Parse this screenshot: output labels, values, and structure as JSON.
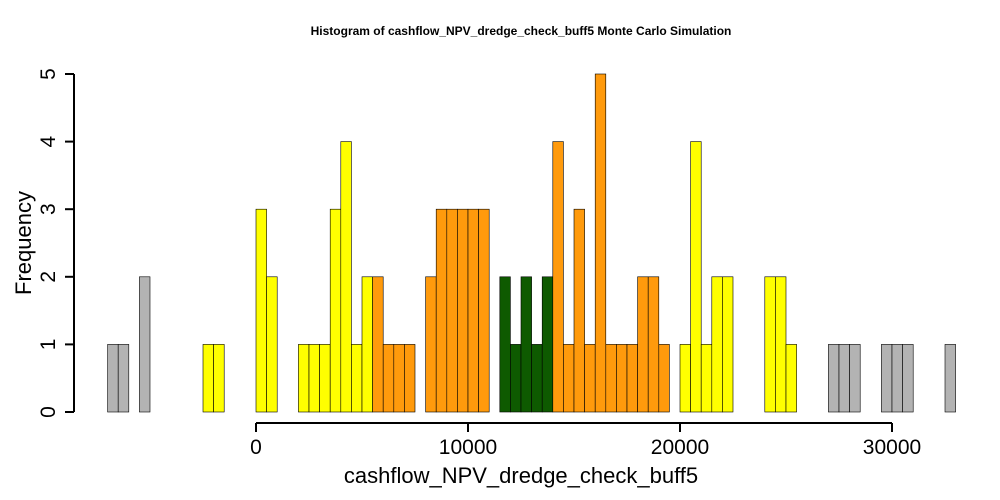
{
  "chart_data": {
    "type": "bar",
    "title": "Histogram of  cashflow_NPV_dredge_check_buff5  Monte Carlo Simulation",
    "xlabel": "cashflow_NPV_dredge_check_buff5",
    "ylabel": "Frequency",
    "xlim": [
      -6000,
      32000
    ],
    "ylim": [
      0,
      5
    ],
    "bin_width": 500,
    "first_bin_start": -7000,
    "x_ticks": [
      0,
      10000,
      20000,
      30000
    ],
    "y_ticks": [
      0,
      1,
      2,
      3,
      4,
      5
    ],
    "grid": false,
    "legend": "none",
    "colors": {
      "gray": "#b3b3b3",
      "yellow": "#ffff00",
      "orange": "#ff9a0c",
      "green": "#0e5a00",
      "outline": "#000000"
    },
    "counts": [
      1,
      1,
      0,
      2,
      0,
      0,
      0,
      0,
      0,
      1,
      1,
      0,
      0,
      0,
      3,
      2,
      0,
      0,
      1,
      1,
      1,
      3,
      4,
      1,
      2,
      2,
      1,
      1,
      1,
      0,
      2,
      3,
      3,
      3,
      3,
      3,
      0,
      2,
      1,
      2,
      1,
      2,
      4,
      1,
      3,
      1,
      5,
      1,
      1,
      1,
      2,
      2,
      1,
      0,
      1,
      4,
      1,
      2,
      2,
      0,
      0,
      0,
      2,
      2,
      1,
      0,
      0,
      0,
      1,
      1,
      1,
      0,
      0,
      1,
      1,
      1,
      0,
      0,
      0,
      1
    ],
    "bar_colors": [
      "gray",
      "gray",
      "gray",
      "gray",
      "gray",
      "gray",
      "gray",
      "gray",
      "gray",
      "yellow",
      "yellow",
      "yellow",
      "yellow",
      "yellow",
      "yellow",
      "yellow",
      "yellow",
      "yellow",
      "yellow",
      "yellow",
      "yellow",
      "yellow",
      "yellow",
      "yellow",
      "yellow",
      "orange",
      "orange",
      "orange",
      "orange",
      "orange",
      "orange",
      "orange",
      "orange",
      "orange",
      "orange",
      "orange",
      "green",
      "green",
      "green",
      "green",
      "green",
      "green",
      "orange",
      "orange",
      "orange",
      "orange",
      "orange",
      "orange",
      "orange",
      "orange",
      "orange",
      "orange",
      "orange",
      "yellow",
      "yellow",
      "yellow",
      "yellow",
      "yellow",
      "yellow",
      "yellow",
      "yellow",
      "yellow",
      "yellow",
      "yellow",
      "yellow",
      "yellow",
      "yellow",
      "yellow",
      "gray",
      "gray",
      "gray",
      "gray",
      "gray",
      "gray",
      "gray",
      "gray",
      "gray",
      "gray",
      "gray",
      "gray"
    ]
  }
}
